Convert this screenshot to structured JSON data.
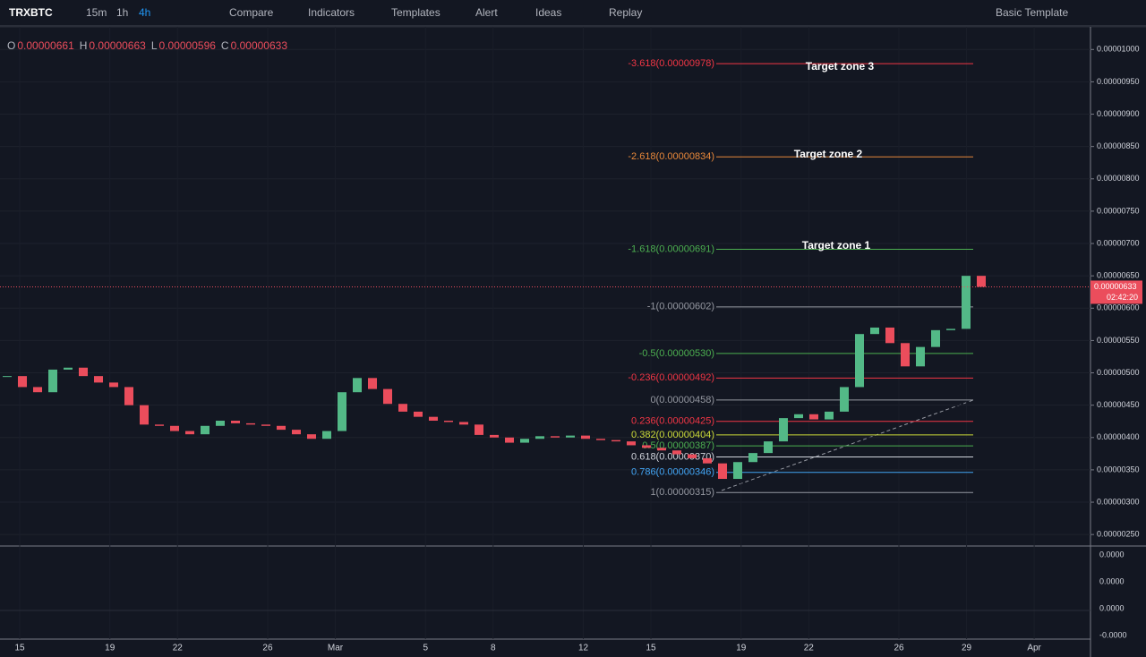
{
  "toolbar": {
    "symbol": "TRXBTC",
    "intervals": [
      "15m",
      "1h",
      "4h"
    ],
    "buttons": [
      "Compare",
      "Indicators",
      "Templates",
      "Alert",
      "Ideas",
      "Replay"
    ],
    "template": "Basic Template"
  },
  "legend": {
    "items": [
      {
        "key": "O",
        "value": "0.00000661"
      },
      {
        "key": "H",
        "value": "0.00000663"
      },
      {
        "key": "L",
        "value": "0.00000596"
      },
      {
        "key": "C",
        "value": "0.00000633"
      }
    ]
  },
  "chart_data": {
    "type": "candlestick",
    "closes": [
      4.95e-06,
      4.78e-06,
      4.7e-06,
      5.05e-06,
      5.08e-06,
      4.95e-06,
      4.85e-06,
      4.78e-06,
      4.5e-06,
      4.2e-06,
      4.18e-06,
      4.1e-06,
      4.05e-06,
      4.18e-06,
      4.26e-06,
      4.22e-06,
      4.2e-06,
      4.18e-06,
      4.12e-06,
      4.05e-06,
      3.98e-06,
      4.1e-06,
      4.7e-06,
      4.92e-06,
      4.75e-06,
      4.52e-06,
      4.4e-06,
      4.32e-06,
      4.26e-06,
      4.24e-06,
      4.2e-06,
      4.04e-06,
      4e-06,
      3.92e-06,
      3.98e-06,
      4.02e-06,
      4e-06,
      4.03e-06,
      3.98e-06,
      3.96e-06,
      3.94e-06,
      3.88e-06,
      3.84e-06,
      3.8e-06,
      3.74e-06,
      3.68e-06,
      3.6e-06,
      3.36e-06,
      3.62e-06,
      3.76e-06,
      3.94e-06,
      4.3e-06,
      4.36e-06,
      4.28e-06,
      4.4e-06,
      4.78e-06,
      5.6e-06,
      5.7e-06,
      5.46e-06,
      5.1e-06,
      5.4e-06,
      5.66e-06,
      5.68e-06,
      6.5e-06,
      6.33e-06
    ],
    "up_color": "#53b987",
    "down_color": "#eb4d5c",
    "ylim": [
      2.35e-06,
      1.035e-05
    ],
    "yticks": [
      {
        "value": 1e-05,
        "label": "0.00001000"
      },
      {
        "value": 9.5e-06,
        "label": "0.00000950"
      },
      {
        "value": 9e-06,
        "label": "0.00000900"
      },
      {
        "value": 8.5e-06,
        "label": "0.00000850"
      },
      {
        "value": 8e-06,
        "label": "0.00000800"
      },
      {
        "value": 7.5e-06,
        "label": "0.00000750"
      },
      {
        "value": 7e-06,
        "label": "0.00000700"
      },
      {
        "value": 6.5e-06,
        "label": "0.00000650"
      },
      {
        "value": 6e-06,
        "label": "0.00000600"
      },
      {
        "value": 5.5e-06,
        "label": "0.00000550"
      },
      {
        "value": 5e-06,
        "label": "0.00000500"
      },
      {
        "value": 4.5e-06,
        "label": "0.00000450"
      },
      {
        "value": 4e-06,
        "label": "0.00000400"
      },
      {
        "value": 3.5e-06,
        "label": "0.00000350"
      },
      {
        "value": 3e-06,
        "label": "0.00000300"
      },
      {
        "value": 2.5e-06,
        "label": "0.00000250"
      }
    ],
    "x_labels": [
      "15",
      "19",
      "22",
      "26",
      "Mar",
      "5",
      "8",
      "12",
      "15",
      "19",
      "22",
      "26",
      "29",
      "Apr"
    ],
    "last_price": {
      "value": 6.33e-06,
      "label": "0.00000633"
    },
    "countdown": "02:42:20",
    "fib_levels": [
      {
        "label": "-3.618(0.00000978)",
        "value": 9.78e-06,
        "color": "#f23645"
      },
      {
        "label": "-2.618(0.00000834)",
        "value": 8.34e-06,
        "color": "#e8883a"
      },
      {
        "label": "-1.618(0.00000691)",
        "value": 6.91e-06,
        "color": "#4caf50"
      },
      {
        "label": "-1(0.00000602)",
        "value": 6.02e-06,
        "color": "#9598a1"
      },
      {
        "label": "-0.5(0.00000530)",
        "value": 5.3e-06,
        "color": "#4caf50"
      },
      {
        "label": "-0.236(0.00000492)",
        "value": 4.92e-06,
        "color": "#f23645"
      },
      {
        "label": "0(0.00000458)",
        "value": 4.58e-06,
        "color": "#9598a1"
      },
      {
        "label": "0.236(0.00000425)",
        "value": 4.25e-06,
        "color": "#f23645"
      },
      {
        "label": "0.382(0.00000404)",
        "value": 4.04e-06,
        "color": "#cddc39"
      },
      {
        "label": "0.5(0.00000387)",
        "value": 3.87e-06,
        "color": "#4caf50"
      },
      {
        "label": "0.618(0.00000370)",
        "value": 3.7e-06,
        "color": "#d1d4dc"
      },
      {
        "label": "0.786(0.00000346)",
        "value": 3.46e-06,
        "color": "#42a5f5"
      },
      {
        "label": "1(0.00000315)",
        "value": 3.15e-06,
        "color": "#9598a1"
      }
    ],
    "annotations": [
      "Target zone 3",
      "Target zone 2",
      "Target zone 1"
    ]
  },
  "macd_pane": {
    "labels": [
      "0.0000",
      "0.0000",
      "0.0000",
      "-0.0000"
    ]
  }
}
